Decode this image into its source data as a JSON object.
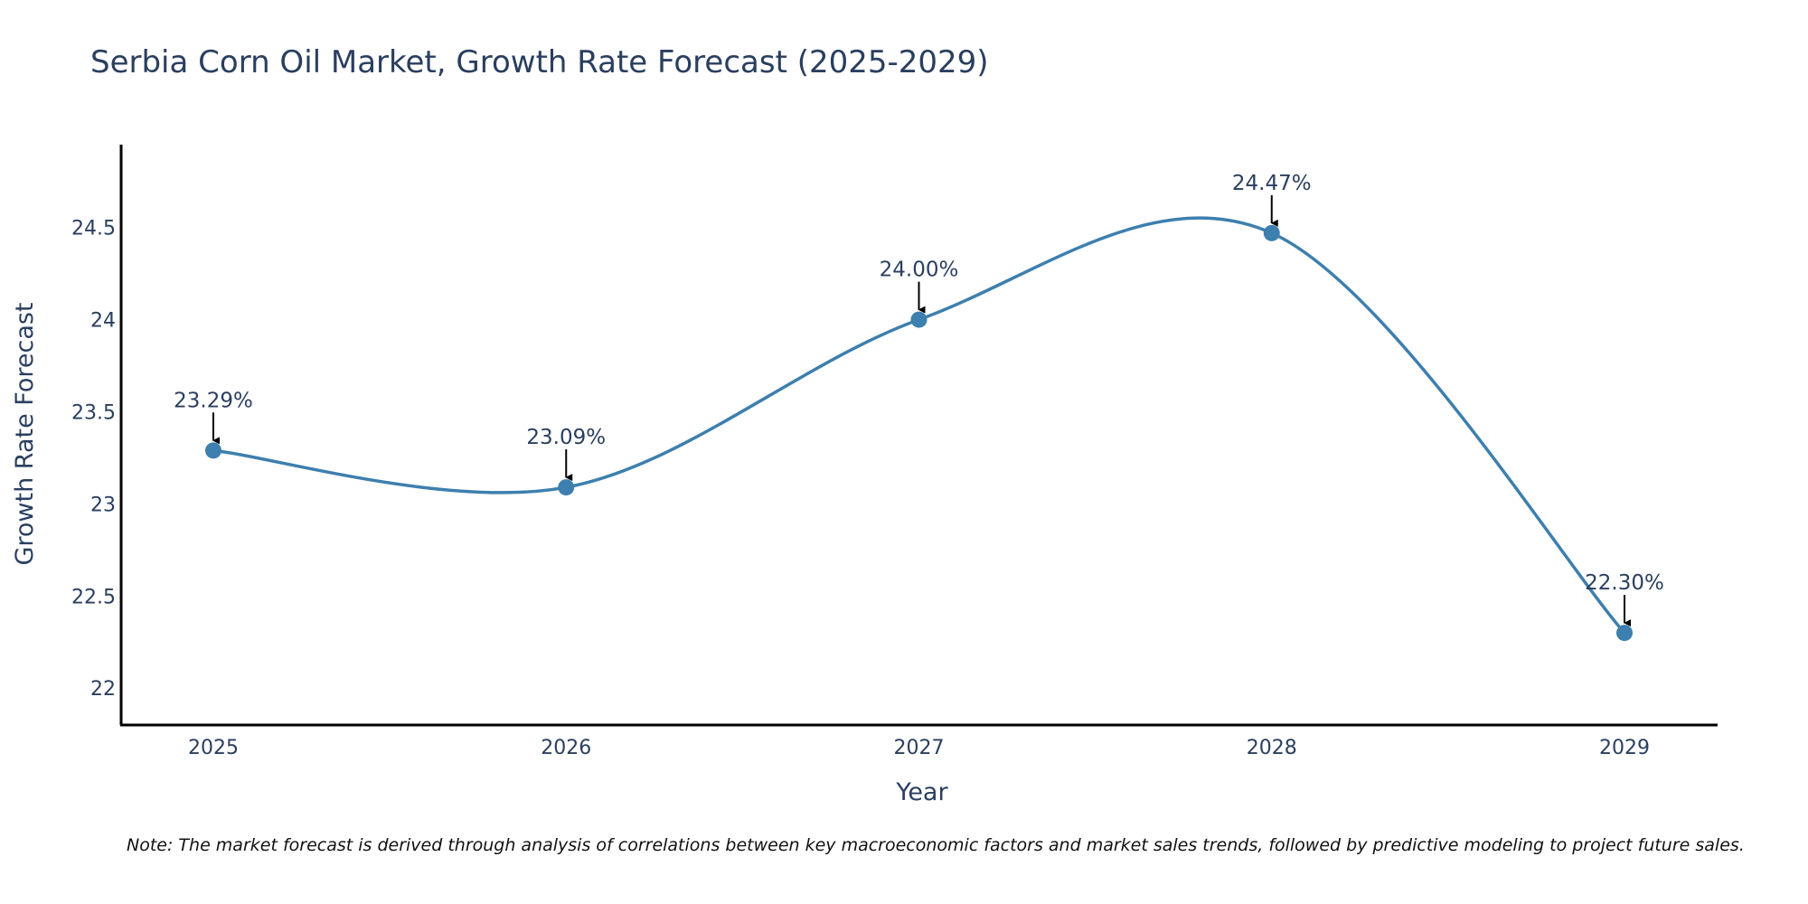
{
  "chart_data": {
    "type": "line",
    "title": "Serbia Corn Oil Market, Growth Rate Forecast (2025-2029)",
    "xlabel": "Year",
    "ylabel": "Growth Rate Forecast",
    "categories": [
      "2025",
      "2026",
      "2027",
      "2028",
      "2029"
    ],
    "values": [
      23.29,
      23.09,
      24.0,
      24.47,
      22.3
    ],
    "data_labels": [
      "23.29%",
      "23.09%",
      "24.00%",
      "24.47%",
      "22.30%"
    ],
    "y_ticks": [
      22,
      22.5,
      23,
      23.5,
      24,
      24.5
    ],
    "y_tick_labels": [
      "22",
      "22.5",
      "23",
      "23.5",
      "24",
      "24.5"
    ],
    "ylim": [
      21.8,
      24.95
    ],
    "grid": false,
    "line_color": "#3d7fae",
    "marker_color": "#3d7fae",
    "arrow_color": "#000000"
  },
  "note": "Note: The market forecast is derived through analysis of correlations between key macroeconomic factors and market sales trends, followed by predictive modeling to project future sales."
}
